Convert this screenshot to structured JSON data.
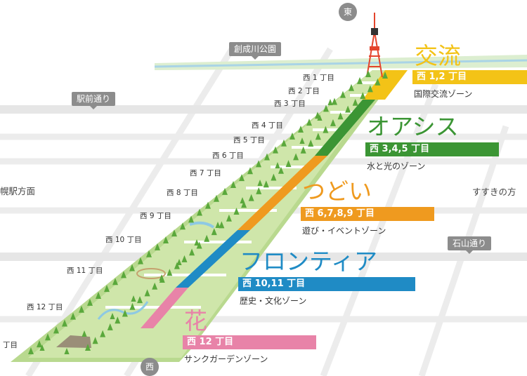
{
  "compass": {
    "east": "東",
    "west": "西"
  },
  "road_signs": {
    "sosei": "創成川公園",
    "ekimae": "駅前通り",
    "ishiyama": "石山通り"
  },
  "directions": {
    "left": "幌駅方面",
    "right": "すすきの方"
  },
  "streets": [
    "西 1 丁目",
    "西 2 丁目",
    "西 3 丁目",
    "西 4 丁目",
    "西 5 丁目",
    "西 6 丁目",
    "西 7 丁目",
    "西 8 丁目",
    "西 9 丁目",
    "西 10 丁目",
    "西 11 丁目",
    "西 12 丁目",
    "丁目"
  ],
  "zones": [
    {
      "title": "交流",
      "label": "西 1,2 丁目",
      "desc": "国際交流ゾーン",
      "color": "#f3c317"
    },
    {
      "title": "オアシス",
      "label": "西 3,4,5 丁目",
      "desc": "水と光のゾーン",
      "color": "#3b9534"
    },
    {
      "title": "つどい",
      "label": "西 6,7,8,9 丁目",
      "desc": "遊び・イベントゾーン",
      "color": "#ef9a1f"
    },
    {
      "title": "フロンティア",
      "label": "西 10,11 丁目",
      "desc": "歴史・文化ゾーン",
      "color": "#1f8bc5"
    },
    {
      "title": "花",
      "label": "西 12 丁目",
      "desc": "サンクガーデンゾーン",
      "color": "#e883a8"
    }
  ]
}
